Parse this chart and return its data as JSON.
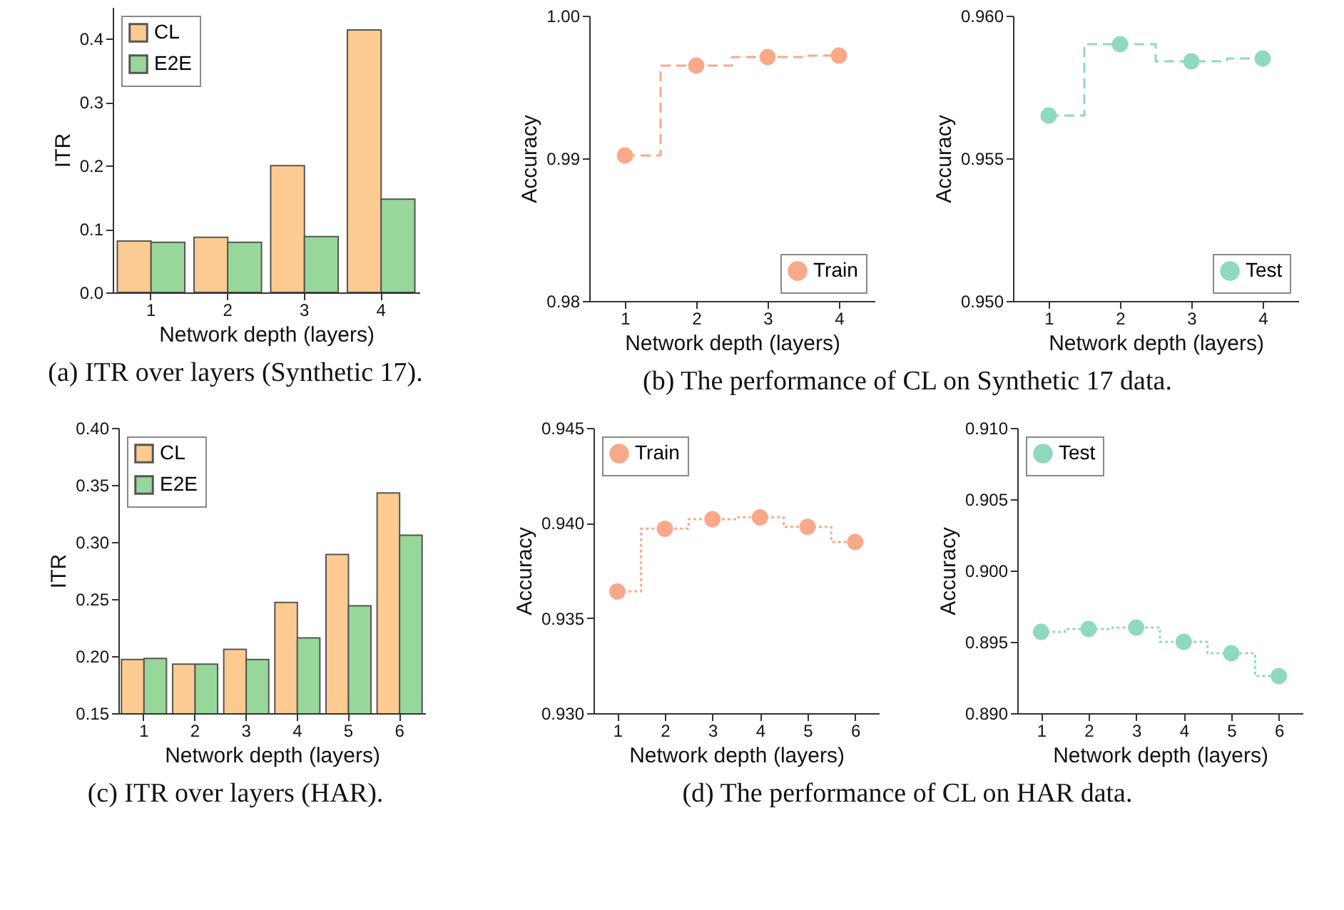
{
  "chart_data": [
    {
      "type": "bar",
      "xlabel": "Network depth (layers)",
      "ylabel": "ITR",
      "categories": [
        "1",
        "2",
        "3",
        "4"
      ],
      "ylim": [
        0,
        0.45
      ],
      "yticks": [
        {
          "value": 0,
          "label": "0.0"
        },
        0.1,
        0.2,
        0.3,
        0.4
      ],
      "legend": "top left",
      "annotations": [
        "(a) ITR over layers (Synthetic 17)."
      ],
      "series": [
        {
          "name": "CL",
          "color": "#fdcb92",
          "values": [
            0.081,
            0.087,
            0.2,
            0.414
          ]
        },
        {
          "name": "E2E",
          "color": "#98d79a",
          "values": [
            0.079,
            0.079,
            0.088,
            0.147
          ]
        }
      ]
    },
    {
      "type": "step",
      "xlabel": "Network depth (layers)",
      "ylabel": "Accuracy",
      "x": [
        1,
        2,
        3,
        4
      ],
      "xlim": [
        0.5,
        4.5
      ],
      "xticks": [
        1,
        2,
        3,
        4
      ],
      "ylim": [
        0.98,
        1.0
      ],
      "yticks": [
        0.98,
        0.99,
        {
          "value": 1.0,
          "label": "1.00"
        }
      ],
      "legend": "bottom right",
      "marker": "circle",
      "line_style": "dashed",
      "annotations": [
        "(b) The performance of CL on Synthetic 17 data."
      ],
      "series": [
        {
          "name": "Train",
          "color": "#f9a88a",
          "values": [
            0.9902,
            0.9965,
            0.9971,
            0.9972
          ]
        }
      ]
    },
    {
      "type": "step",
      "xlabel": "Network depth (layers)",
      "ylabel": "Accuracy",
      "x": [
        1,
        2,
        3,
        4
      ],
      "xlim": [
        0.5,
        4.5
      ],
      "xticks": [
        1,
        2,
        3,
        4
      ],
      "ylim": [
        0.95,
        0.96
      ],
      "yticks": [
        {
          "value": 0.95,
          "label": "0.950"
        },
        0.955,
        {
          "value": 0.96,
          "label": "0.960"
        }
      ],
      "legend": "bottom right",
      "marker": "circle",
      "line_style": "dashed",
      "series": [
        {
          "name": "Test",
          "color": "#8fd9bd",
          "values": [
            0.9565,
            0.959,
            0.9584,
            0.9585
          ]
        }
      ]
    },
    {
      "type": "bar",
      "xlabel": "Network depth (layers)",
      "ylabel": "ITR",
      "categories": [
        "1",
        "2",
        "3",
        "4",
        "5",
        "6"
      ],
      "ylim": [
        0.15,
        0.4
      ],
      "yticks": [
        0.15,
        {
          "value": 0.2,
          "label": "0.20"
        },
        0.25,
        {
          "value": 0.3,
          "label": "0.30"
        },
        0.35,
        {
          "value": 0.4,
          "label": "0.40"
        }
      ],
      "legend": "top left",
      "annotations": [
        "(c) ITR over layers (HAR)."
      ],
      "series": [
        {
          "name": "CL",
          "color": "#fdcb92",
          "values": [
            0.197,
            0.193,
            0.206,
            0.247,
            0.289,
            0.343
          ]
        },
        {
          "name": "E2E",
          "color": "#98d79a",
          "values": [
            0.198,
            0.193,
            0.197,
            0.216,
            0.244,
            0.306
          ]
        }
      ]
    },
    {
      "type": "step",
      "xlabel": "Network depth (layers)",
      "ylabel": "Accuracy",
      "x": [
        1,
        2,
        3,
        4,
        5,
        6
      ],
      "xlim": [
        0.5,
        6.5
      ],
      "xticks": [
        1,
        2,
        3,
        4,
        5,
        6
      ],
      "ylim": [
        0.93,
        0.945
      ],
      "yticks": [
        {
          "value": 0.93,
          "label": "0.930"
        },
        0.935,
        {
          "value": 0.94,
          "label": "0.940"
        },
        0.945
      ],
      "legend": "top left",
      "marker": "circle",
      "line_style": "dotted",
      "annotations": [
        "(d) The performance of CL on HAR data."
      ],
      "series": [
        {
          "name": "Train",
          "color": "#f9a88a",
          "values": [
            0.9364,
            0.9397,
            0.9402,
            0.9403,
            0.9398,
            0.939
          ]
        }
      ]
    },
    {
      "type": "step",
      "xlabel": "Network depth (layers)",
      "ylabel": "Accuracy",
      "x": [
        1,
        2,
        3,
        4,
        5,
        6
      ],
      "xlim": [
        0.5,
        6.5
      ],
      "xticks": [
        1,
        2,
        3,
        4,
        5,
        6
      ],
      "ylim": [
        0.89,
        0.91
      ],
      "yticks": [
        {
          "value": 0.89,
          "label": "0.890"
        },
        0.895,
        {
          "value": 0.9,
          "label": "0.900"
        },
        0.905,
        {
          "value": 0.91,
          "label": "0.910"
        }
      ],
      "legend": "top left",
      "marker": "circle",
      "line_style": "dotted",
      "series": [
        {
          "name": "Test",
          "color": "#8fd9bd",
          "values": [
            0.8957,
            0.8959,
            0.896,
            0.895,
            0.8942,
            0.8926
          ]
        }
      ]
    }
  ]
}
